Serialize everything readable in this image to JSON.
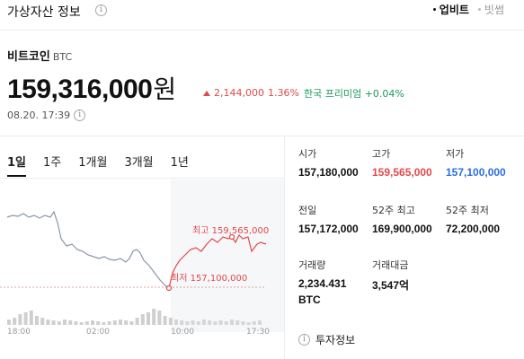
{
  "header": {
    "title": "가상자산 정보",
    "info_icon": "info-icon"
  },
  "source_tabs": [
    {
      "label": "업비트",
      "active": true
    },
    {
      "label": "빗썸",
      "active": false
    }
  ],
  "coin": {
    "name": "비트코인",
    "ticker": "BTC"
  },
  "price": {
    "value": "159,316,000",
    "unit": "원"
  },
  "change": {
    "amount": "2,144,000",
    "percent": "1.36%",
    "direction": "up"
  },
  "premium": {
    "label": "한국 프리미엄",
    "value": "+0.04%"
  },
  "timestamp": "08.20. 17:39",
  "period_tabs": [
    {
      "label": "1일",
      "active": true
    },
    {
      "label": "1주",
      "active": false
    },
    {
      "label": "1개월",
      "active": false
    },
    {
      "label": "3개월",
      "active": false
    },
    {
      "label": "1년",
      "active": false
    }
  ],
  "chart": {
    "x_ticks": [
      "18:00",
      "02:00",
      "10:00",
      "17:30"
    ],
    "high_label": "최고 159,565,000",
    "low_label": "최저 157,100,000",
    "high": 159565000,
    "low": 157100000,
    "colors": {
      "before": "#8a96a8",
      "after": "#e0494b"
    }
  },
  "stats": [
    {
      "label": "시가",
      "value": "157,180,000",
      "tone": "normal"
    },
    {
      "label": "고가",
      "value": "159,565,000",
      "tone": "red"
    },
    {
      "label": "저가",
      "value": "157,100,000",
      "tone": "blue"
    },
    {
      "label": "전일",
      "value": "157,172,000",
      "tone": "normal"
    },
    {
      "label": "52주 최고",
      "value": "169,900,000",
      "tone": "normal"
    },
    {
      "label": "52주 최저",
      "value": "72,200,000",
      "tone": "normal"
    },
    {
      "label": "거래량",
      "value": "2,234.431",
      "value2": "BTC",
      "tone": "normal"
    },
    {
      "label": "거래대금",
      "value": "3,547억",
      "tone": "normal"
    }
  ],
  "invest_info": {
    "label": "투자정보",
    "icon": "info-icon"
  }
}
